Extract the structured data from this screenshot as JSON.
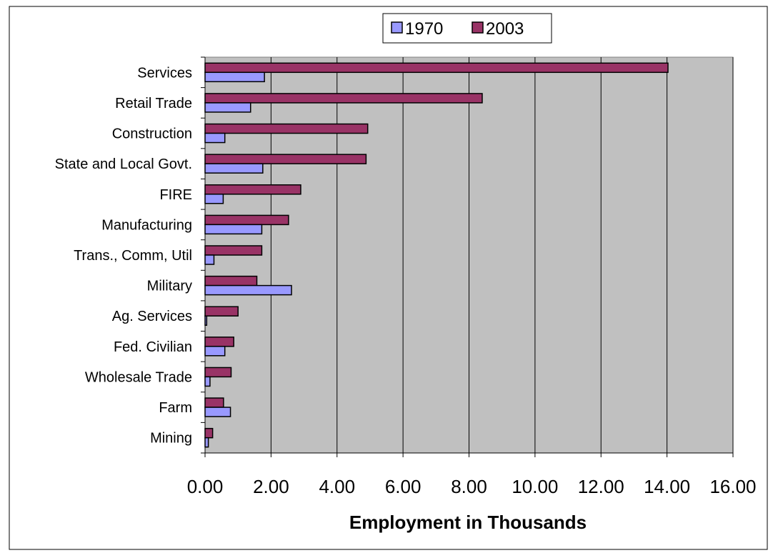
{
  "chart_data": {
    "type": "bar",
    "orientation": "horizontal",
    "xlabel": "Employment in Thousands",
    "ylabel": "",
    "xlim": [
      0,
      16
    ],
    "x_ticks": [
      "0.00",
      "2.00",
      "4.00",
      "6.00",
      "8.00",
      "10.00",
      "12.00",
      "14.00",
      "16.00"
    ],
    "grid": "vertical",
    "legend_position": "top",
    "plot_background": "#c0c0c0",
    "categories": [
      "Services",
      "Retail Trade",
      "Construction",
      "State and Local Govt.",
      "FIRE",
      "Manufacturing",
      "Trans., Comm, Util",
      "Military",
      "Ag. Services",
      "Fed. Civilian ",
      "Wholesale Trade",
      "Farm",
      "Mining"
    ],
    "series": [
      {
        "name": "1970",
        "color": "#9999ff",
        "values": [
          1.8,
          1.38,
          0.6,
          1.75,
          0.55,
          1.72,
          0.27,
          2.62,
          0.05,
          0.6,
          0.15,
          0.77,
          0.1
        ]
      },
      {
        "name": "2003",
        "color": "#993366",
        "values": [
          14.03,
          8.4,
          4.93,
          4.88,
          2.9,
          2.53,
          1.72,
          1.57,
          1.0,
          0.87,
          0.79,
          0.56,
          0.23
        ]
      }
    ]
  }
}
